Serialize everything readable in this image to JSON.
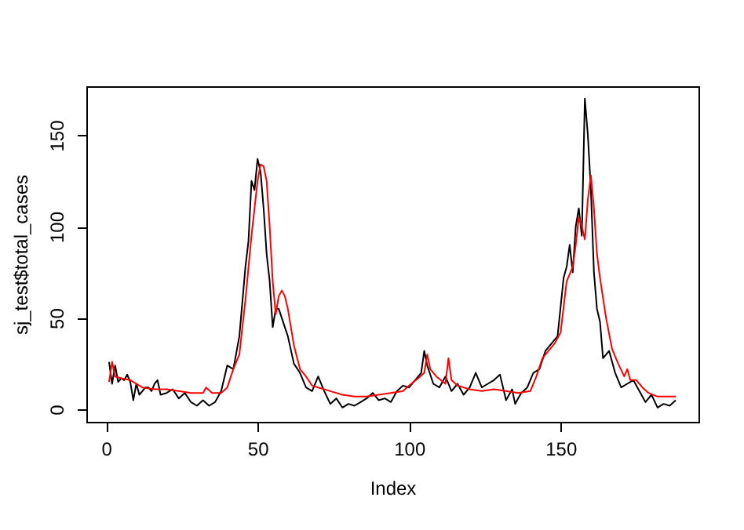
{
  "chart_data": {
    "type": "line",
    "xlabel": "Index",
    "ylabel": "sj_test$total_cases",
    "xlim": [
      -6.5,
      195.5
    ],
    "ylim": [
      -6.8,
      176.8
    ],
    "xticks": [
      0,
      50,
      100,
      150
    ],
    "yticks": [
      0,
      50,
      100,
      150
    ],
    "grid": false,
    "marker": "none",
    "line_style": "solid",
    "series": [
      {
        "color": "#000000",
        "x": [
          1,
          2,
          3,
          4,
          5,
          6,
          7,
          8,
          9,
          10,
          11,
          12,
          13,
          14,
          15,
          16,
          17,
          18,
          20,
          22,
          24,
          26,
          28,
          30,
          32,
          34,
          36,
          38,
          40,
          42,
          44,
          46,
          47,
          48,
          49,
          50,
          51,
          52,
          53,
          54,
          55,
          56,
          57,
          58,
          60,
          62,
          64,
          66,
          68,
          70,
          72,
          74,
          76,
          78,
          80,
          82,
          84,
          86,
          88,
          90,
          92,
          94,
          96,
          98,
          100,
          102,
          104,
          105,
          106,
          108,
          110,
          112,
          114,
          116,
          118,
          120,
          122,
          124,
          126,
          128,
          130,
          132,
          134,
          135,
          137,
          139,
          141,
          143,
          145,
          147,
          149,
          151,
          152,
          153,
          154,
          155,
          156,
          157,
          158,
          159,
          160,
          161,
          162,
          163,
          164,
          166,
          168,
          170,
          172,
          174,
          176,
          178,
          180,
          182,
          184,
          186,
          188
        ],
        "values": [
          26,
          14,
          24,
          15,
          17,
          16,
          19,
          15,
          5,
          14,
          8,
          10,
          12,
          12,
          10,
          14,
          16,
          8,
          9,
          11,
          6,
          9,
          4,
          2,
          5,
          2,
          4,
          10,
          24,
          22,
          40,
          78,
          92,
          125,
          120,
          137,
          130,
          110,
          85,
          70,
          45,
          55,
          55,
          50,
          40,
          25,
          20,
          12,
          10,
          18,
          10,
          3,
          6,
          1,
          3,
          2,
          4,
          6,
          9,
          5,
          6,
          4,
          10,
          13,
          12,
          16,
          20,
          32,
          24,
          14,
          12,
          18,
          10,
          14,
          8,
          12,
          20,
          12,
          14,
          16,
          19,
          5,
          11,
          3,
          9,
          12,
          20,
          22,
          32,
          36,
          40,
          72,
          78,
          90,
          75,
          100,
          110,
          95,
          170,
          150,
          120,
          75,
          55,
          48,
          28,
          32,
          20,
          12,
          14,
          16,
          10,
          4,
          8,
          1,
          3,
          2,
          5
        ]
      },
      {
        "color": "#ff0000",
        "x": [
          1,
          2,
          3,
          5,
          8,
          12,
          16,
          20,
          24,
          28,
          32,
          33,
          35,
          38,
          40,
          42,
          44,
          46,
          48,
          50,
          51,
          52,
          53,
          54,
          55,
          56,
          57,
          58,
          59,
          60,
          62,
          64,
          66,
          68,
          70,
          74,
          78,
          82,
          86,
          90,
          94,
          98,
          100,
          103,
          105,
          106,
          107,
          109,
          112,
          113,
          114,
          116,
          120,
          124,
          128,
          132,
          136,
          140,
          142,
          144,
          146,
          148,
          150,
          152,
          154,
          155,
          156,
          157,
          158,
          159,
          160,
          161,
          162,
          163,
          165,
          167,
          169,
          171,
          172,
          173,
          175,
          177,
          179,
          182,
          185,
          188
        ],
        "values": [
          15,
          26,
          18,
          17,
          16,
          12,
          11,
          11,
          10,
          9,
          9,
          12,
          9,
          9,
          12,
          22,
          30,
          60,
          95,
          125,
          134,
          133,
          125,
          100,
          70,
          52,
          62,
          65,
          62,
          55,
          35,
          22,
          18,
          13,
          12,
          10,
          8,
          7,
          7,
          8,
          9,
          10,
          13,
          17,
          20,
          30,
          22,
          18,
          14,
          28,
          16,
          13,
          11,
          10,
          11,
          10,
          9,
          10,
          18,
          28,
          32,
          36,
          42,
          70,
          78,
          90,
          105,
          100,
          93,
          115,
          128,
          110,
          85,
          72,
          50,
          33,
          25,
          18,
          22,
          16,
          16,
          12,
          9,
          7,
          7,
          7
        ]
      }
    ]
  }
}
